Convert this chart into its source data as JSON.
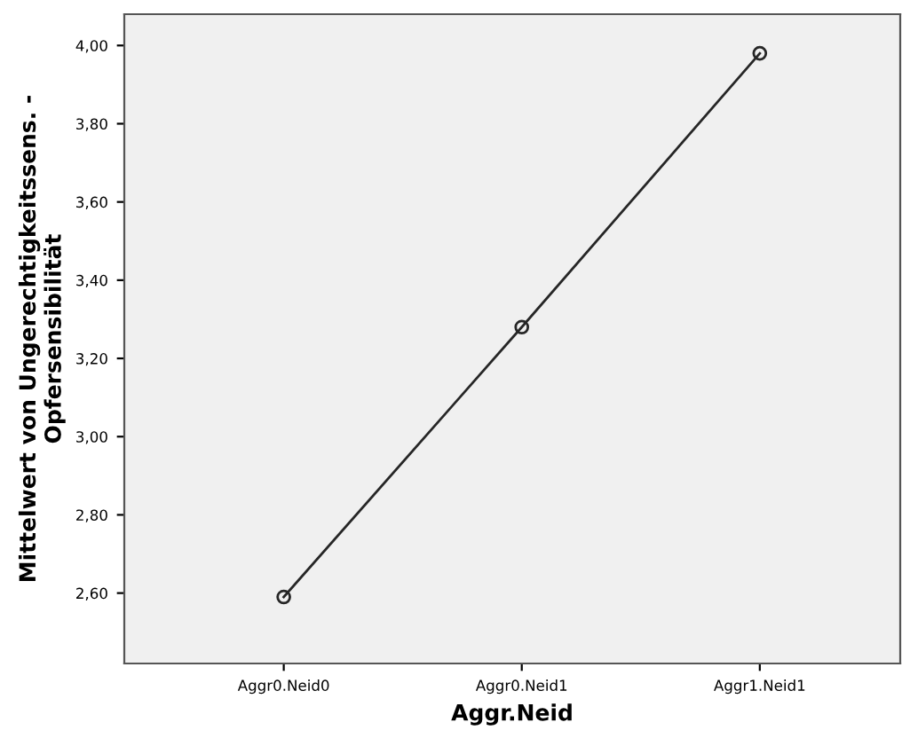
{
  "chart_data": {
    "type": "line",
    "xlabel": "Aggr.Neid",
    "ylabel": "Mittelwert von Ungerechtigkeitssens. -\nOpfersensibilität",
    "categories": [
      "Aggr0.Neid0",
      "Aggr0.Neid1",
      "Aggr1.Neid1"
    ],
    "series": [
      {
        "color": "#262626",
        "values": [
          2.59,
          3.28,
          3.98
        ]
      }
    ],
    "ylim": [
      2.42,
      4.08
    ],
    "yticks": [
      {
        "value": 2.6,
        "label": "2,60"
      },
      {
        "value": 2.8,
        "label": "2,80"
      },
      {
        "value": 3.0,
        "label": "3,00"
      },
      {
        "value": 3.2,
        "label": "3,20"
      },
      {
        "value": 3.4,
        "label": "3,40"
      },
      {
        "value": 3.6,
        "label": "3,60"
      },
      {
        "value": 3.8,
        "label": "3,80"
      },
      {
        "value": 4.0,
        "label": "4,00"
      }
    ],
    "marker": "circle",
    "line_style": "solid",
    "grid": false,
    "legend": false
  }
}
